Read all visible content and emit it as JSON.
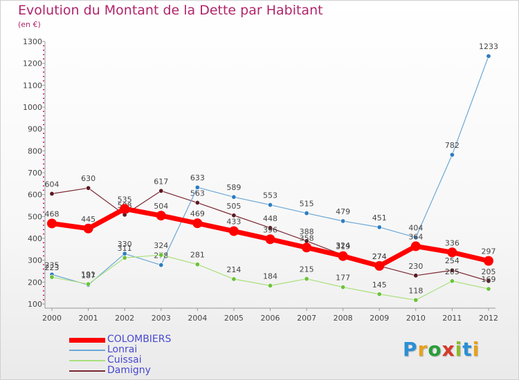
{
  "header": {
    "title": "Evolution du Montant de la Dette par Habitant",
    "subtitle": "(en €)"
  },
  "logo": {
    "text": "Proxiti",
    "colors": [
      "#2a8fd6",
      "#e8a21a",
      "#2a9d3a",
      "#d63a2a",
      "#8bbd2a",
      "#2a8fd6",
      "#e8a21a"
    ]
  },
  "chart_data": {
    "type": "line",
    "x": [
      "2000",
      "2001",
      "2002",
      "2003",
      "2004",
      "2005",
      "2006",
      "2007",
      "2008",
      "2009",
      "2010",
      "2011",
      "2012"
    ],
    "ylim": [
      100,
      1300
    ],
    "yticks": [
      100,
      200,
      300,
      400,
      500,
      600,
      700,
      800,
      900,
      1000,
      1100,
      1200,
      1300
    ],
    "grid": false,
    "legend_position": "bottom-left",
    "series": [
      {
        "name": "Damigny",
        "color": "#7a2630",
        "dot": "#5a1a22",
        "width": 1.2,
        "values": [
          604,
          630,
          508,
          617,
          563,
          505,
          448,
          388,
          324,
          274,
          230,
          254,
          205
        ]
      },
      {
        "name": "Lonrai",
        "color": "#6aa7d6",
        "dot": "#2f7cc1",
        "width": 1.2,
        "values": [
          235,
          187,
          330,
          278,
          633,
          589,
          553,
          515,
          479,
          451,
          404,
          782,
          1233
        ]
      },
      {
        "name": "Cuissai",
        "color": "#a8e07a",
        "dot": "#6cc23a",
        "width": 1.2,
        "values": [
          223,
          191,
          311,
          324,
          281,
          214,
          184,
          215,
          177,
          145,
          118,
          205,
          169
        ]
      },
      {
        "name": "COLOMBIERS",
        "color": "#ff0000",
        "dot": "#ff0000",
        "width": 7,
        "values": [
          468,
          445,
          535,
          504,
          469,
          433,
          396,
          358,
          319,
          274,
          364,
          336,
          297
        ]
      }
    ],
    "legend_order": [
      "COLOMBIERS",
      "Lonrai",
      "Cuissai",
      "Damigny"
    ]
  }
}
